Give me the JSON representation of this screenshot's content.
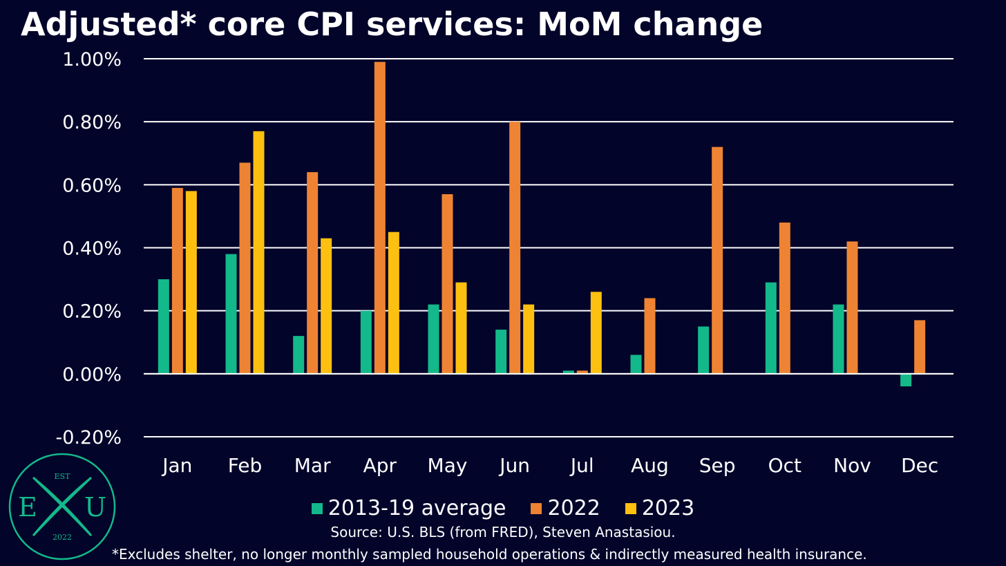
{
  "chart_data": {
    "type": "bar",
    "title": "Adjusted* core CPI services: MoM change",
    "categories": [
      "Jan",
      "Feb",
      "Mar",
      "Apr",
      "May",
      "Jun",
      "Jul",
      "Aug",
      "Sep",
      "Oct",
      "Nov",
      "Dec"
    ],
    "series": [
      {
        "name": "2013-19 average",
        "color": "#13b98a",
        "values": [
          0.3,
          0.38,
          0.12,
          0.2,
          0.22,
          0.14,
          0.01,
          0.06,
          0.15,
          0.29,
          0.22,
          -0.04
        ]
      },
      {
        "name": "2022",
        "color": "#ee8433",
        "values": [
          0.59,
          0.67,
          0.64,
          0.99,
          0.57,
          0.8,
          0.01,
          0.24,
          0.72,
          0.48,
          0.42,
          0.17
        ]
      },
      {
        "name": "2023",
        "color": "#fdc010",
        "values": [
          0.58,
          0.77,
          0.43,
          0.45,
          0.29,
          0.22,
          0.26,
          null,
          null,
          null,
          null,
          null
        ]
      }
    ],
    "ylim": [
      -0.2,
      1.0
    ],
    "yticks": [
      -0.2,
      0.0,
      0.2,
      0.4,
      0.6,
      0.8,
      1.0
    ],
    "ytick_labels": [
      "-0.20%",
      "0.00%",
      "0.20%",
      "0.40%",
      "0.60%",
      "0.80%",
      "1.00%"
    ],
    "grid": "horizontal",
    "legend_position": "bottom-center",
    "xlabel": "",
    "ylabel": ""
  },
  "source": "Source: U.S. BLS (from FRED), Steven Anastasiou.",
  "footnote": "*Excludes shelter, no longer monthly sampled household operations & indirectly measured health insurance.",
  "logo": {
    "top_text": "EST",
    "left_letter": "E",
    "right_letter": "U",
    "bottom_text": "2022",
    "color": "#13b98a"
  }
}
